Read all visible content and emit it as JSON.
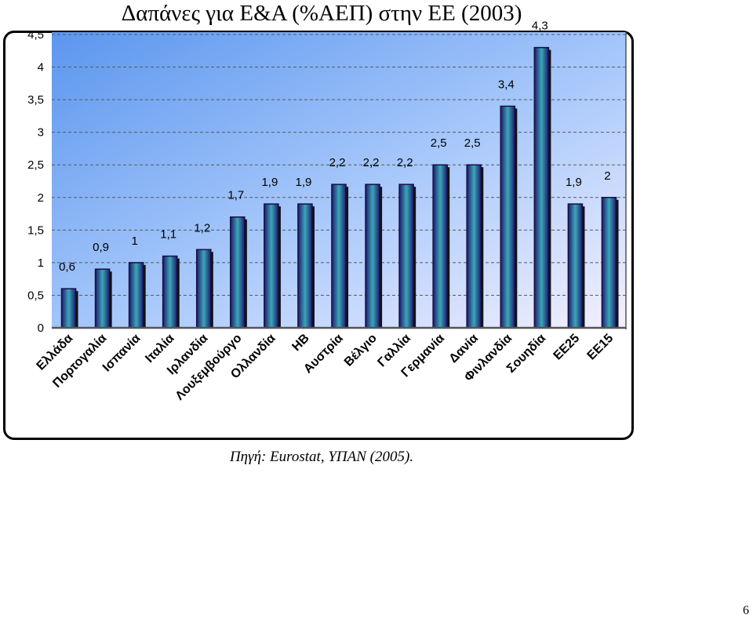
{
  "chart_data": {
    "type": "bar",
    "title": "Δαπάνες για Ε&Α (%ΑΕΠ) στην ΕΕ (2003)",
    "categories": [
      "Ελλάδα",
      "Πορτογαλία",
      "Ισπανία",
      "Ιταλία",
      "Ιρλανδία",
      "Λουξεμβούργο",
      "Ολλανδία",
      "ΗΒ",
      "Αυστρία",
      "Βέλγιο",
      "Γαλλία",
      "Γερμανία",
      "Δανία",
      "Φινλανδία",
      "Σουηδία",
      "ΕΕ25",
      "ΕΕ15"
    ],
    "values": [
      0.6,
      0.9,
      1,
      1.1,
      1.2,
      1.7,
      1.9,
      1.9,
      2.2,
      2.2,
      2.2,
      2.5,
      2.5,
      3.4,
      4.3,
      1.9,
      2
    ],
    "value_labels": [
      "0,6",
      "0,9",
      "1",
      "1,1",
      "1,2",
      "1,7",
      "1,9",
      "1,9",
      "2,2",
      "2,2",
      "2,2",
      "2,5",
      "2,5",
      "3,4",
      "4,3",
      "1,9",
      "2"
    ],
    "y_ticks": [
      "0",
      "0,5",
      "1",
      "1,5",
      "2",
      "2,5",
      "3",
      "3,5",
      "4",
      "4,5"
    ],
    "ylim": [
      0,
      4.5
    ],
    "xlabel": "",
    "ylabel": "",
    "grid": true,
    "legend": "none"
  },
  "source": "Πηγή: Eurostat, ΥΠΑΝ (2005).",
  "page_number": "6",
  "colors": {
    "bar_dark": "#1f1a6e",
    "bar_mid": "#3aa7b8",
    "plot_top_left": "#5b96ee",
    "plot_bottom_right": "#f4f0ff",
    "gridline": "#5a5a5a"
  }
}
